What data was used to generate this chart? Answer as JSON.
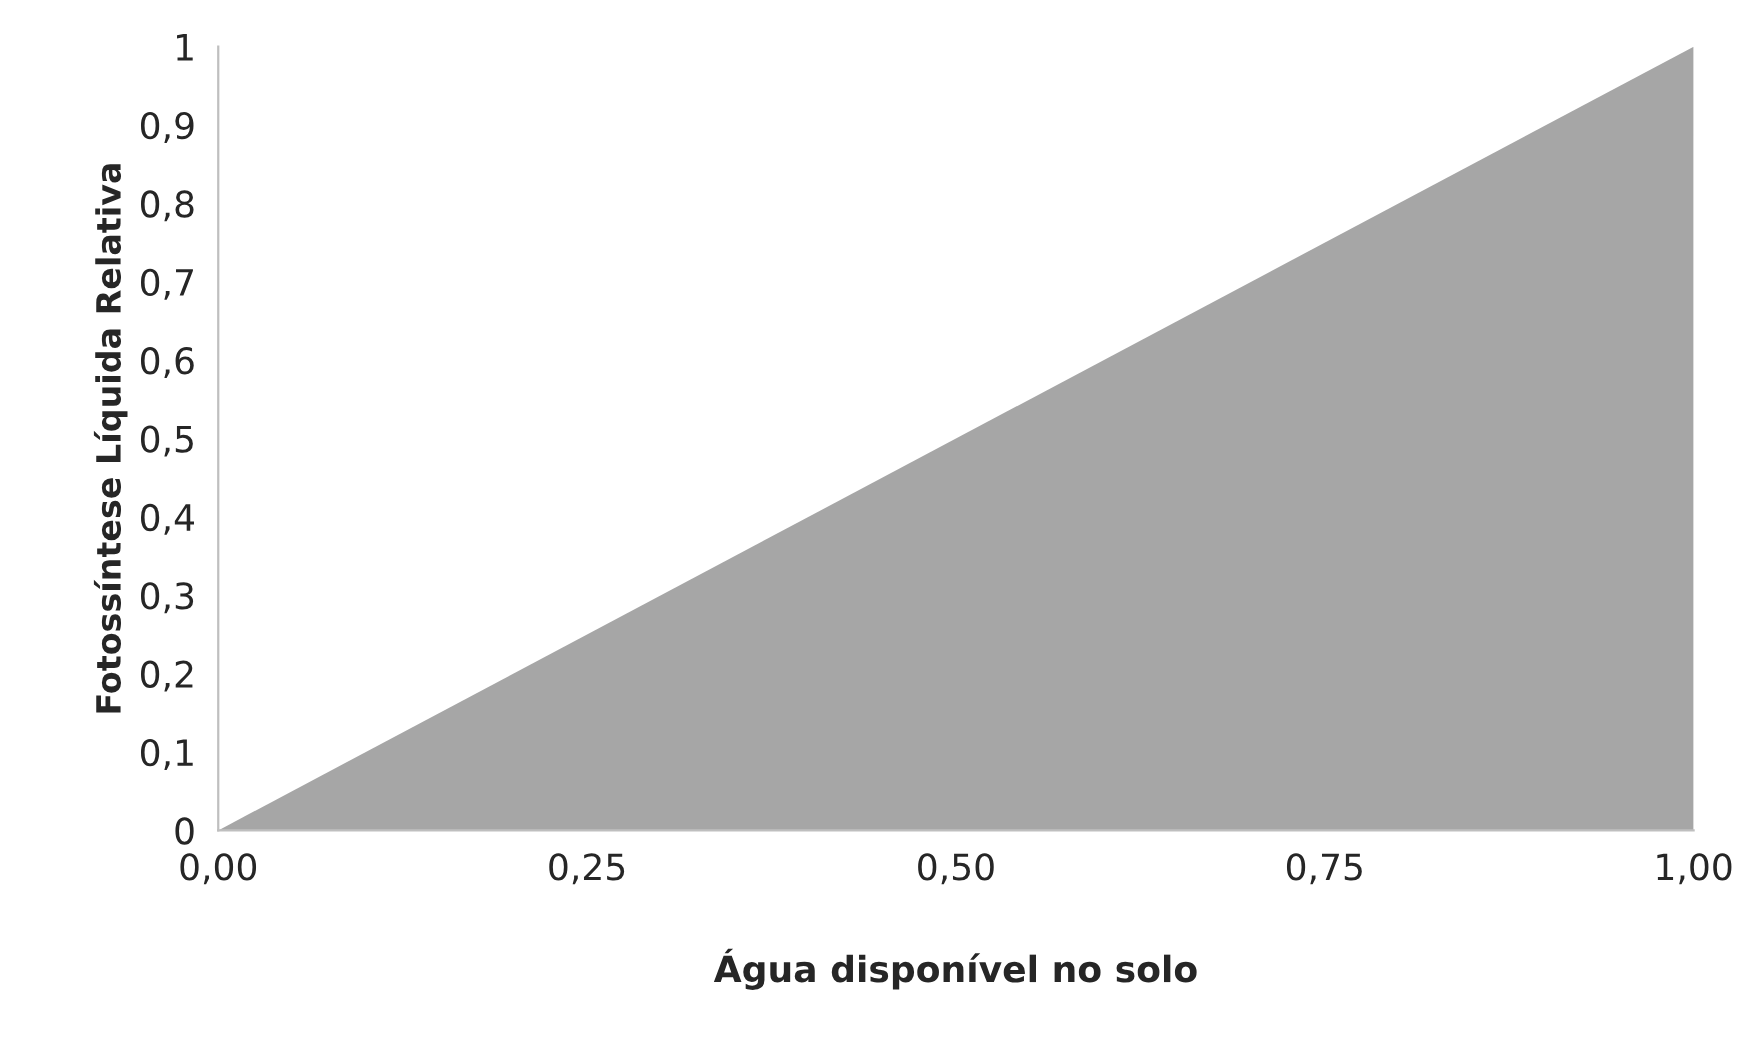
{
  "chart_data": {
    "type": "area",
    "xlabel": "Água disponível no solo",
    "ylabel": "Fotossíntese Líquida Relativa",
    "x": [
      0,
      1
    ],
    "series": [
      {
        "color": "#a6a6a6",
        "values": [
          0,
          1
        ]
      }
    ],
    "xlim": [
      0,
      1
    ],
    "ylim": [
      0,
      1
    ],
    "xticks": [
      {
        "value": 0,
        "label": "0,00"
      },
      {
        "value": 0.25,
        "label": "0,25"
      },
      {
        "value": 0.5,
        "label": "0,50"
      },
      {
        "value": 0.75,
        "label": "0,75"
      },
      {
        "value": 1,
        "label": "1,00"
      }
    ],
    "yticks": [
      0,
      {
        "value": 0.1,
        "label": "0,1"
      },
      {
        "value": 0.2,
        "label": "0,2"
      },
      {
        "value": 0.3,
        "label": "0,3"
      },
      {
        "value": 0.4,
        "label": "0,4"
      },
      {
        "value": 0.5,
        "label": "0,5"
      },
      {
        "value": 0.6,
        "label": "0,6"
      },
      {
        "value": 0.7,
        "label": "0,7"
      },
      {
        "value": 0.8,
        "label": "0,8"
      },
      {
        "value": 0.9,
        "label": "0,9"
      },
      1
    ],
    "grid": false
  }
}
